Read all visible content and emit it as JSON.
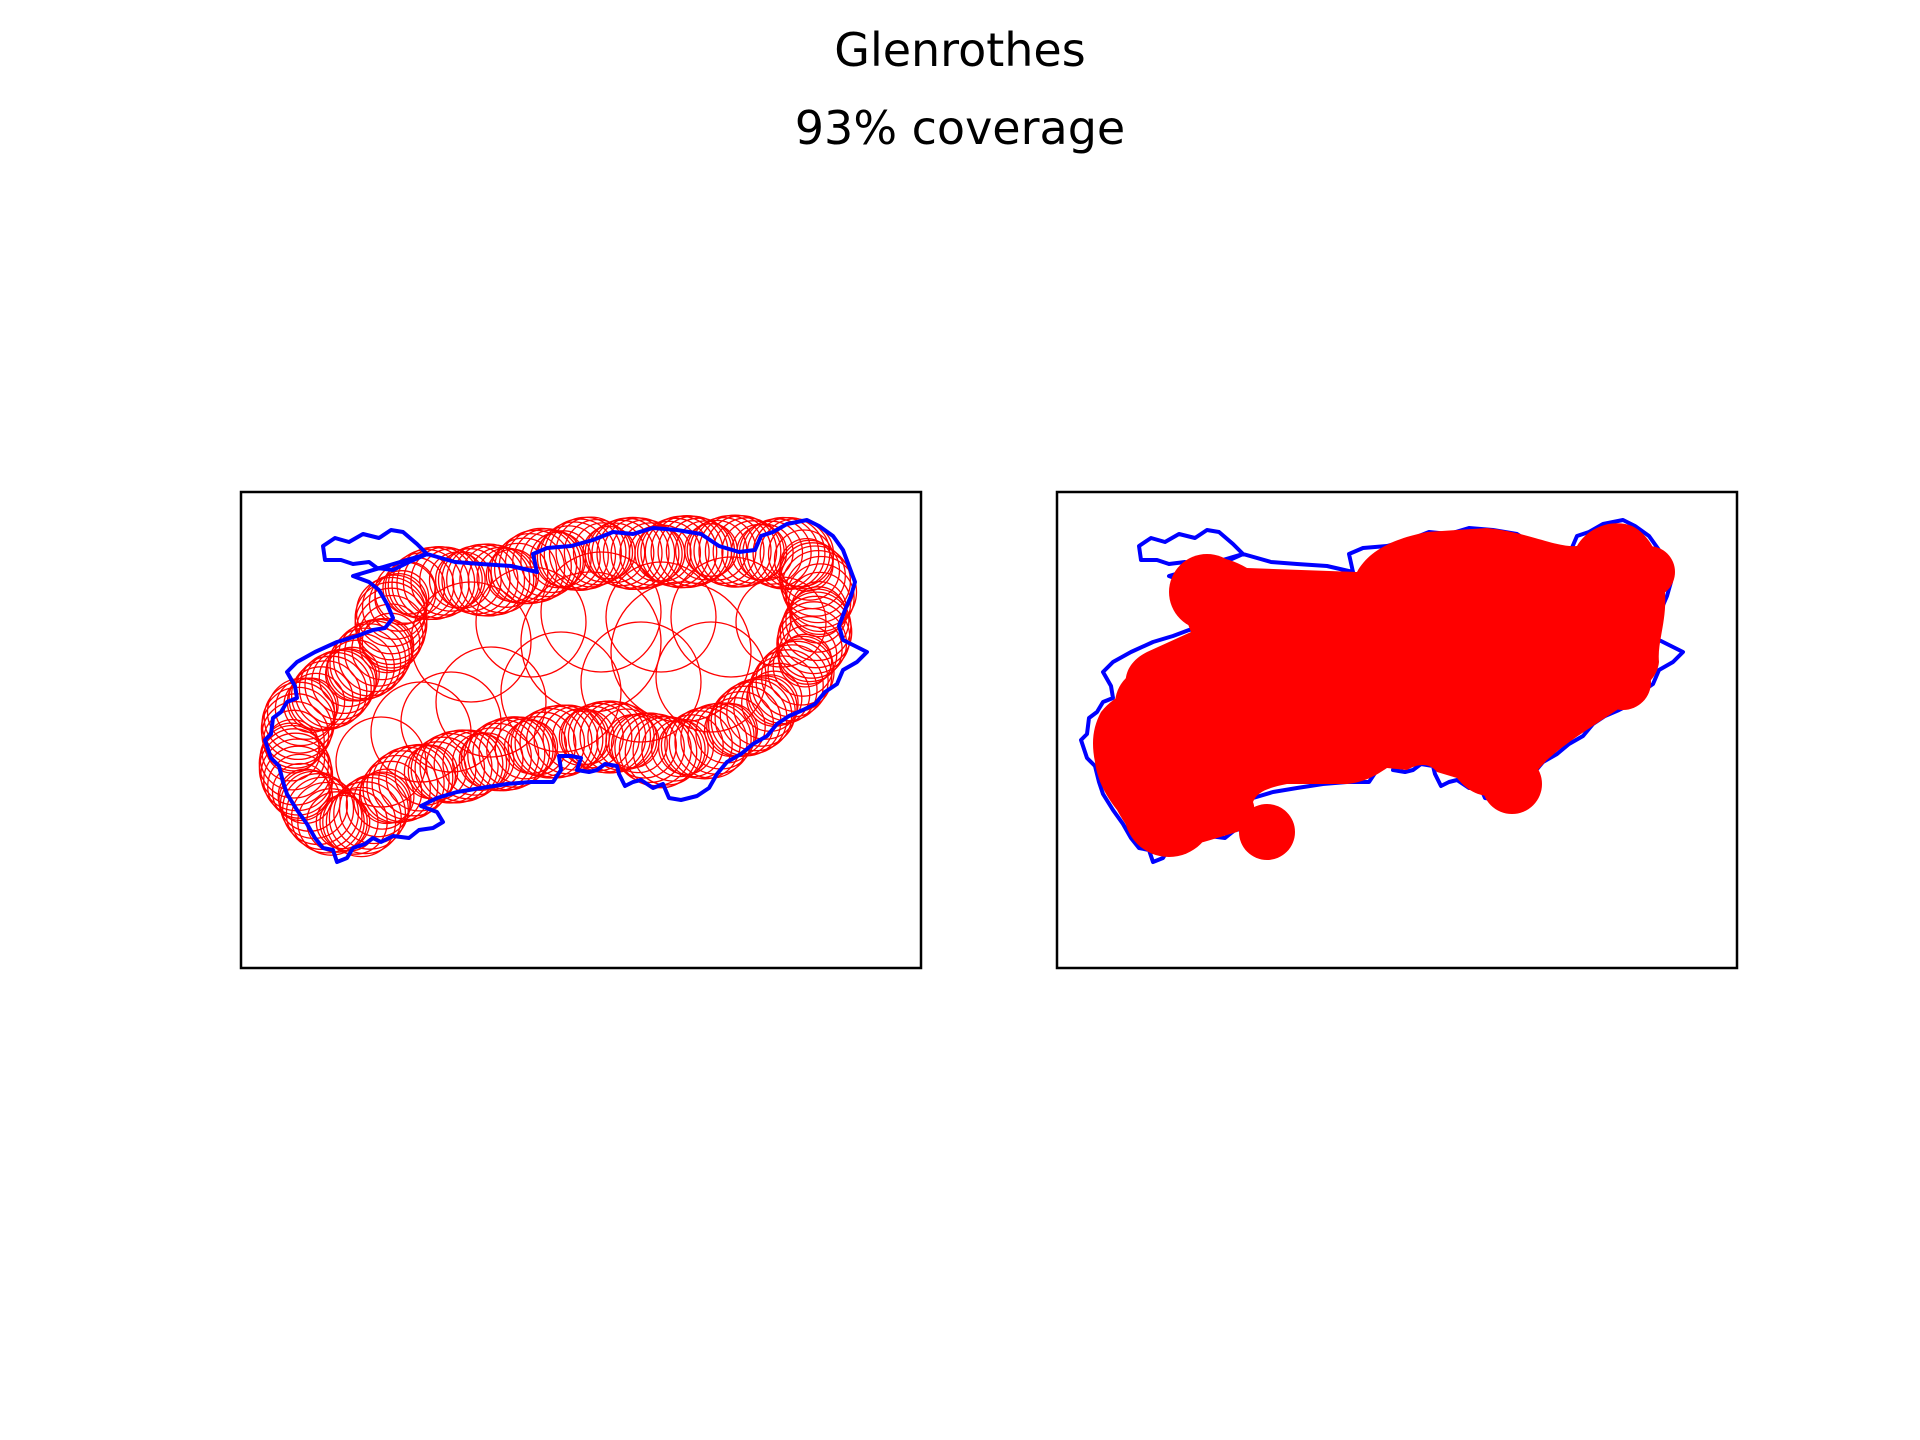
{
  "figure": {
    "title": "Glenrothes",
    "subtitle": "93% coverage"
  },
  "colors": {
    "boundary": "#0000ff",
    "coverage": "#ff0000",
    "frame": "#000000",
    "background": "#ffffff"
  },
  "panels": [
    {
      "name": "circles-panel",
      "style": "circle-outlines"
    },
    {
      "name": "union-panel",
      "style": "filled-union"
    }
  ]
}
